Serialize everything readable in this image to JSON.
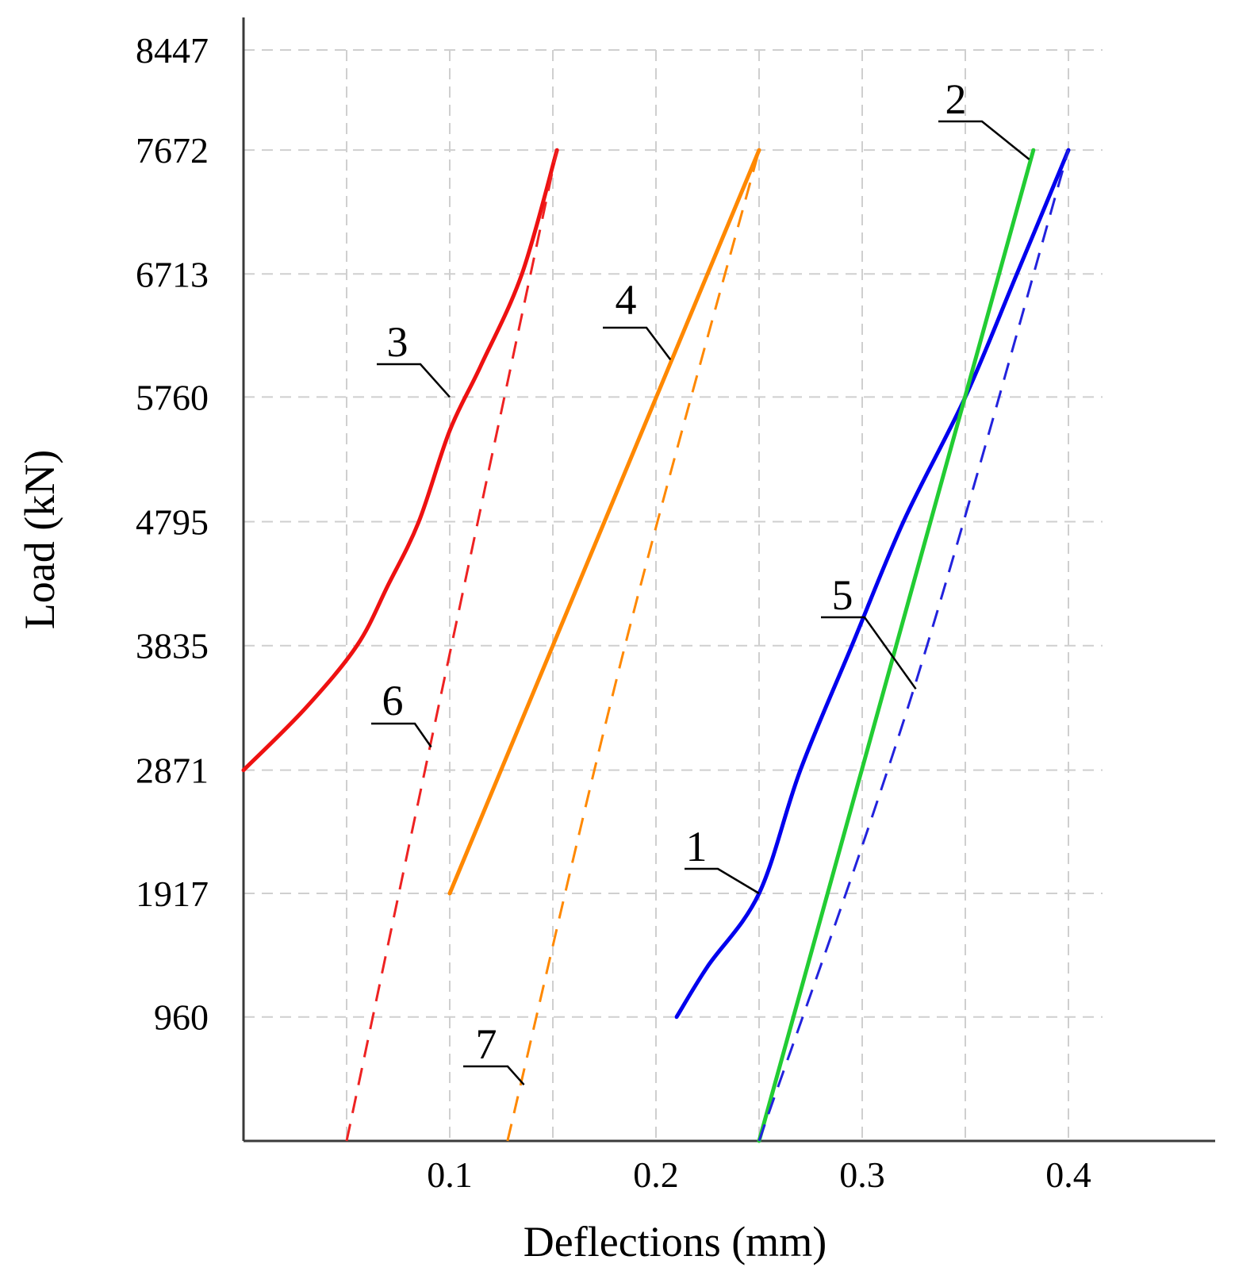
{
  "chart_data": {
    "type": "line",
    "title": "",
    "xlabel": "Deflections (mm)",
    "ylabel": "Load (kN)",
    "xlim": [
      0,
      0.47
    ],
    "ylim": [
      0,
      8447
    ],
    "grid": true,
    "x_ticks": [
      0.05,
      0.1,
      0.15,
      0.2,
      0.25,
      0.3,
      0.35,
      0.4
    ],
    "x_tick_labels": [
      "0.1",
      "0.2",
      "0.3",
      "0.4"
    ],
    "x_tick_label_values": [
      0.1,
      0.2,
      0.3,
      0.4
    ],
    "y_ticks": [
      960,
      1917,
      2871,
      3835,
      4795,
      5760,
      6713,
      7672,
      8447
    ],
    "y_tick_labels": [
      "960",
      "1917",
      "2871",
      "3835",
      "4795",
      "5760",
      "6713",
      "7672",
      "8447"
    ],
    "series": [
      {
        "name": "1",
        "color": "#0000ee",
        "style": "solid",
        "x": [
          0.21,
          0.225,
          0.25,
          0.27,
          0.295,
          0.32,
          0.35,
          0.375,
          0.4
        ],
        "y": [
          960,
          1350,
          1917,
          2871,
          3835,
          4795,
          5760,
          6713,
          7672
        ]
      },
      {
        "name": "2",
        "color": "#22cc33",
        "style": "solid",
        "x": [
          0.25,
          0.383
        ],
        "y": [
          0,
          7672
        ]
      },
      {
        "name": "3",
        "color": "#ee1111",
        "style": "solid",
        "x": [
          0.0,
          0.03,
          0.055,
          0.07,
          0.085,
          0.1,
          0.115,
          0.135,
          0.152
        ],
        "y": [
          2871,
          3350,
          3835,
          4300,
          4795,
          5500,
          6000,
          6713,
          7672
        ]
      },
      {
        "name": "4",
        "color": "#ff8800",
        "style": "solid",
        "x": [
          0.1,
          0.25
        ],
        "y": [
          1917,
          7672
        ]
      },
      {
        "name": "5",
        "color": "#2222dd",
        "style": "dashed",
        "x": [
          0.25,
          0.325,
          0.4
        ],
        "y": [
          0,
          3500,
          7672
        ]
      },
      {
        "name": "6",
        "color": "#ee2222",
        "style": "dashed",
        "x": [
          0.05,
          0.088,
          0.152
        ],
        "y": [
          0,
          2871,
          7672
        ]
      },
      {
        "name": "7",
        "color": "#ff8800",
        "style": "dashed",
        "x": [
          0.128,
          0.185,
          0.25
        ],
        "y": [
          0,
          3835,
          7672
        ]
      }
    ],
    "annotations": [
      {
        "text": "1",
        "point": [
          0.25,
          1917
        ]
      },
      {
        "text": "2",
        "point": [
          0.381,
          7600
        ]
      },
      {
        "text": "3",
        "point": [
          0.1,
          5760
        ]
      },
      {
        "text": "4",
        "point": [
          0.207,
          6050
        ]
      },
      {
        "text": "5",
        "point": [
          0.326,
          3500
        ]
      },
      {
        "text": "6",
        "point": [
          0.091,
          3050
        ]
      },
      {
        "text": "7",
        "point": [
          0.136,
          435
        ]
      }
    ]
  }
}
